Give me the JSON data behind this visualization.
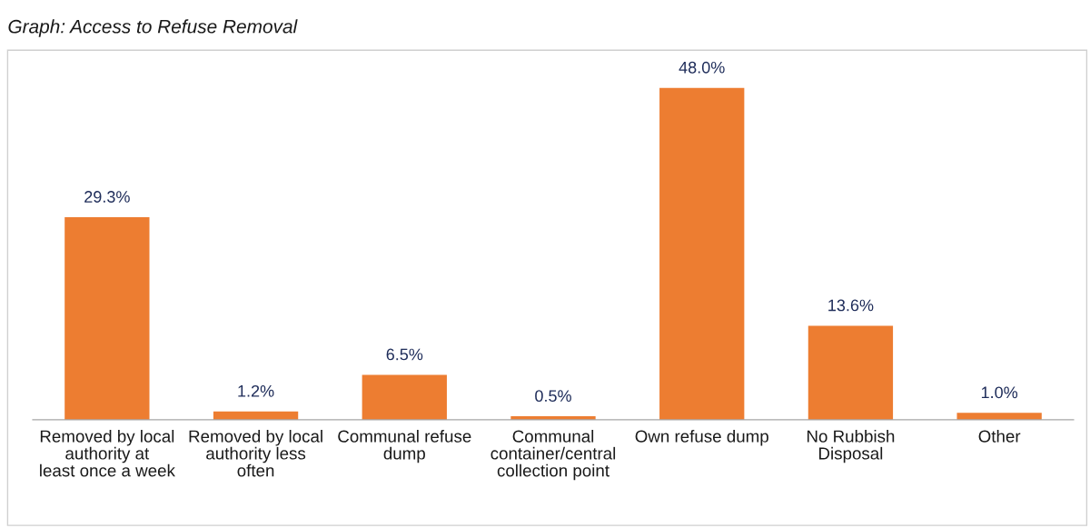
{
  "chart_data": {
    "type": "bar",
    "title": "Graph: Access to Refuse Removal",
    "categories": [
      "Removed by local authority at least once a week",
      "Removed by local authority less often",
      "Communal refuse dump",
      "Communal container/central collection point",
      "Own refuse dump",
      "No Rubbish Disposal",
      "Other"
    ],
    "values": [
      29.3,
      1.2,
      6.5,
      0.5,
      48.0,
      13.6,
      1.0
    ],
    "value_labels": [
      "29.3%",
      "1.2%",
      "6.5%",
      "0.5%",
      "48.0%",
      "13.6%",
      "1.0%"
    ],
    "color": "#ed7d31"
  }
}
